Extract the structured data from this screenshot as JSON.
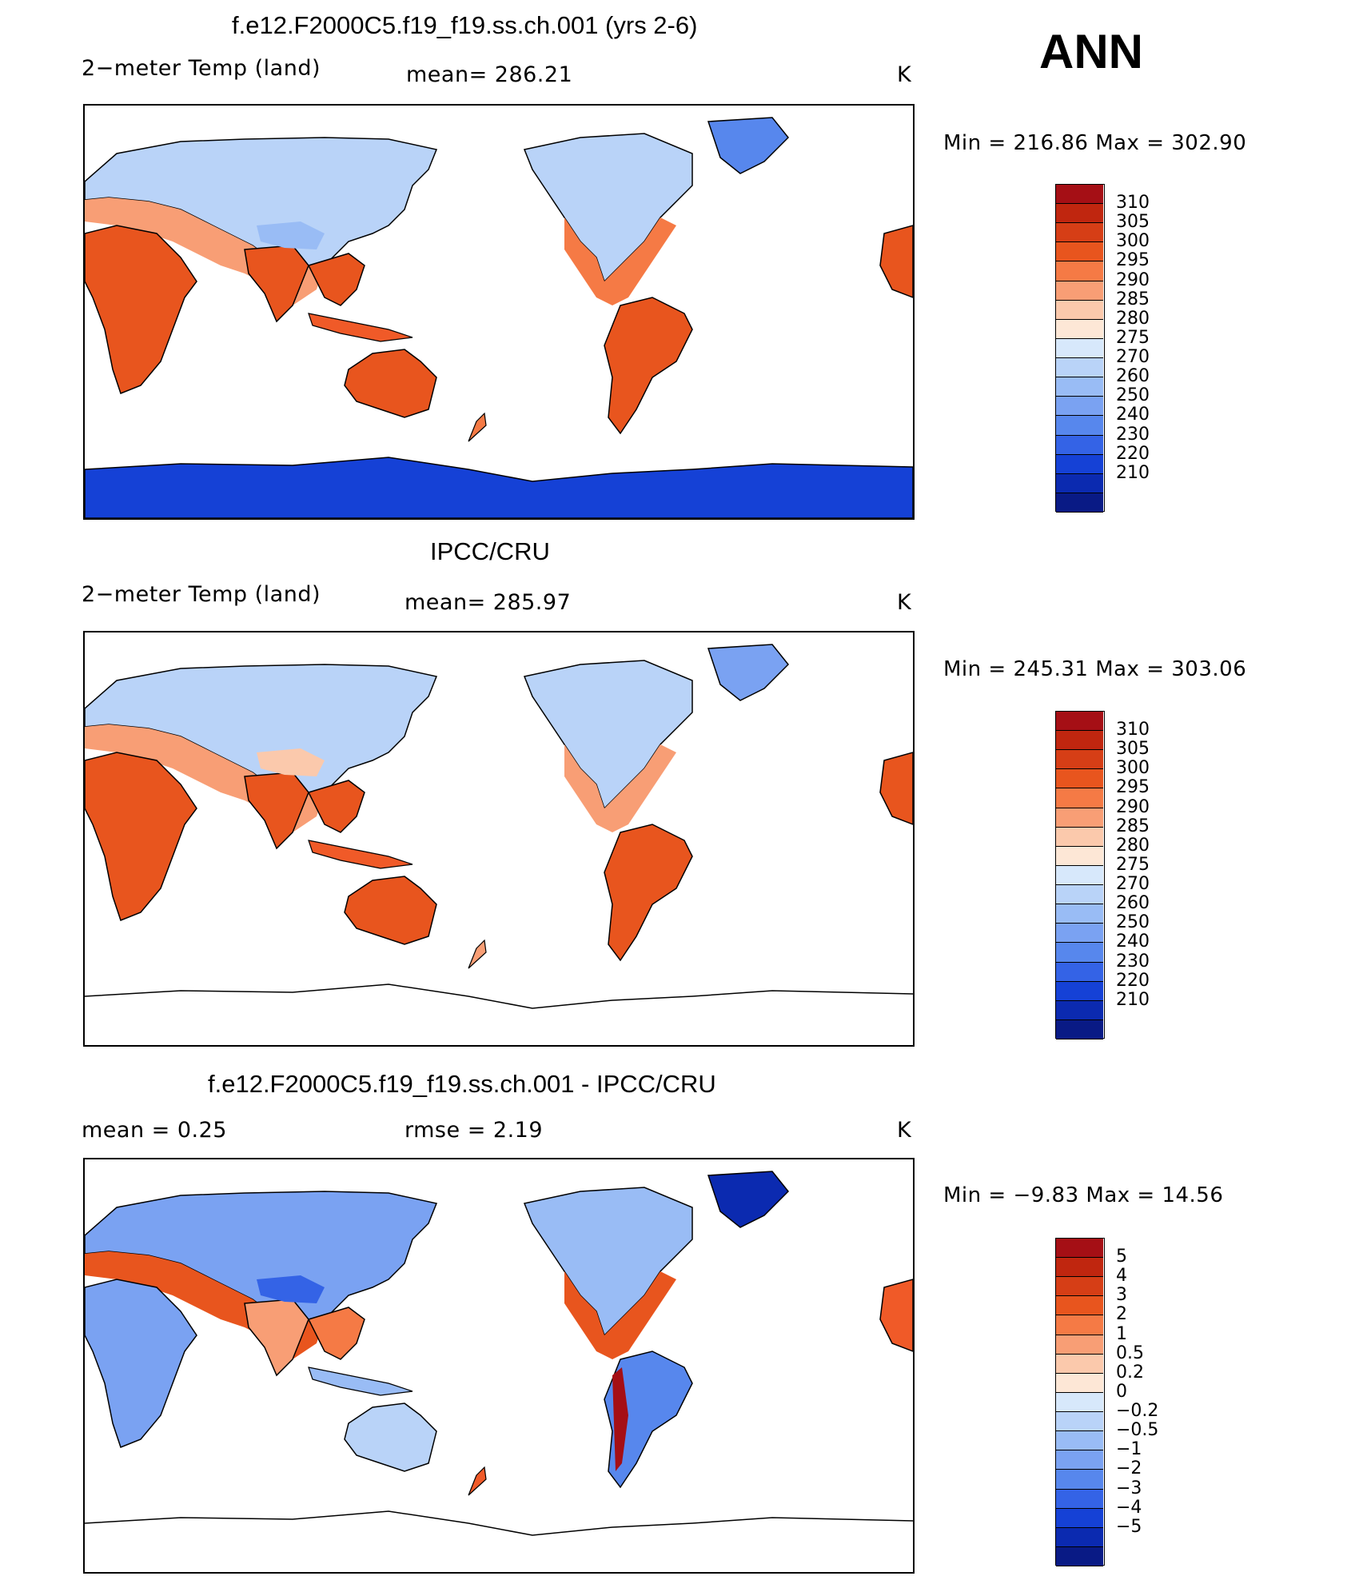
{
  "season": "ANN",
  "panels": [
    {
      "id": "model",
      "title": "f.e12.F2000C5.f19_f19.ss.ch.001 (yrs 2-6)",
      "left_label": "2−meter Temp (land)",
      "center_label": "mean=  286.21",
      "units": "K",
      "minmax": "Min  =  216.86  Max  =  302.90",
      "colorbar": {
        "colors": [
          "#a50f15",
          "#c0260f",
          "#d63e16",
          "#e8551e",
          "#f57a45",
          "#f89e75",
          "#fbc9ac",
          "#fde7d6",
          "#d7e8fb",
          "#b9d3f8",
          "#99bcf5",
          "#7aa2f2",
          "#5787ed",
          "#3463e6",
          "#1541d6",
          "#0b2ab0",
          "#091a85"
        ],
        "labels": [
          "310",
          "305",
          "300",
          "295",
          "290",
          "285",
          "280",
          "275",
          "270",
          "260",
          "250",
          "240",
          "230",
          "220",
          "210"
        ]
      }
    },
    {
      "id": "obs",
      "title": "IPCC/CRU",
      "left_label": "2−meter Temp (land)",
      "center_label": "mean=  285.97",
      "units": "K",
      "minmax": "Min  =  245.31  Max  =  303.06",
      "colorbar": {
        "colors": [
          "#a50f15",
          "#c0260f",
          "#d63e16",
          "#e8551e",
          "#f57a45",
          "#f89e75",
          "#fbc9ac",
          "#fde7d6",
          "#d7e8fb",
          "#b9d3f8",
          "#99bcf5",
          "#7aa2f2",
          "#5787ed",
          "#3463e6",
          "#1541d6",
          "#0b2ab0",
          "#091a85"
        ],
        "labels": [
          "310",
          "305",
          "300",
          "295",
          "290",
          "285",
          "280",
          "275",
          "270",
          "260",
          "250",
          "240",
          "230",
          "220",
          "210"
        ]
      }
    },
    {
      "id": "diff",
      "title": "f.e12.F2000C5.f19_f19.ss.ch.001 - IPCC/CRU",
      "left_label": "mean =     0.25",
      "center_label": "rmse  =     2.19",
      "units": "K",
      "minmax": "Min  =    −9.83  Max  =    14.56",
      "colorbar": {
        "colors": [
          "#a50f15",
          "#c0260f",
          "#d63e16",
          "#e8551e",
          "#f57a45",
          "#f89e75",
          "#fbc9ac",
          "#fde7d6",
          "#d7e8fb",
          "#b9d3f8",
          "#99bcf5",
          "#7aa2f2",
          "#5787ed",
          "#3463e6",
          "#1541d6",
          "#0b2ab0",
          "#091a85"
        ],
        "labels": [
          "5",
          "4",
          "3",
          "2",
          "1",
          "0.5",
          "0.2",
          "0",
          "−0.2",
          "−0.5",
          "−1",
          "−2",
          "−3",
          "−4",
          "−5"
        ]
      }
    }
  ],
  "colors": {
    "land_warm": "#f05a28",
    "land_mid": "#f89e75",
    "land_cool": "#b9d3f8",
    "land_cold": "#5787ed",
    "ice": "#1541d6",
    "coast": "#000000"
  }
}
